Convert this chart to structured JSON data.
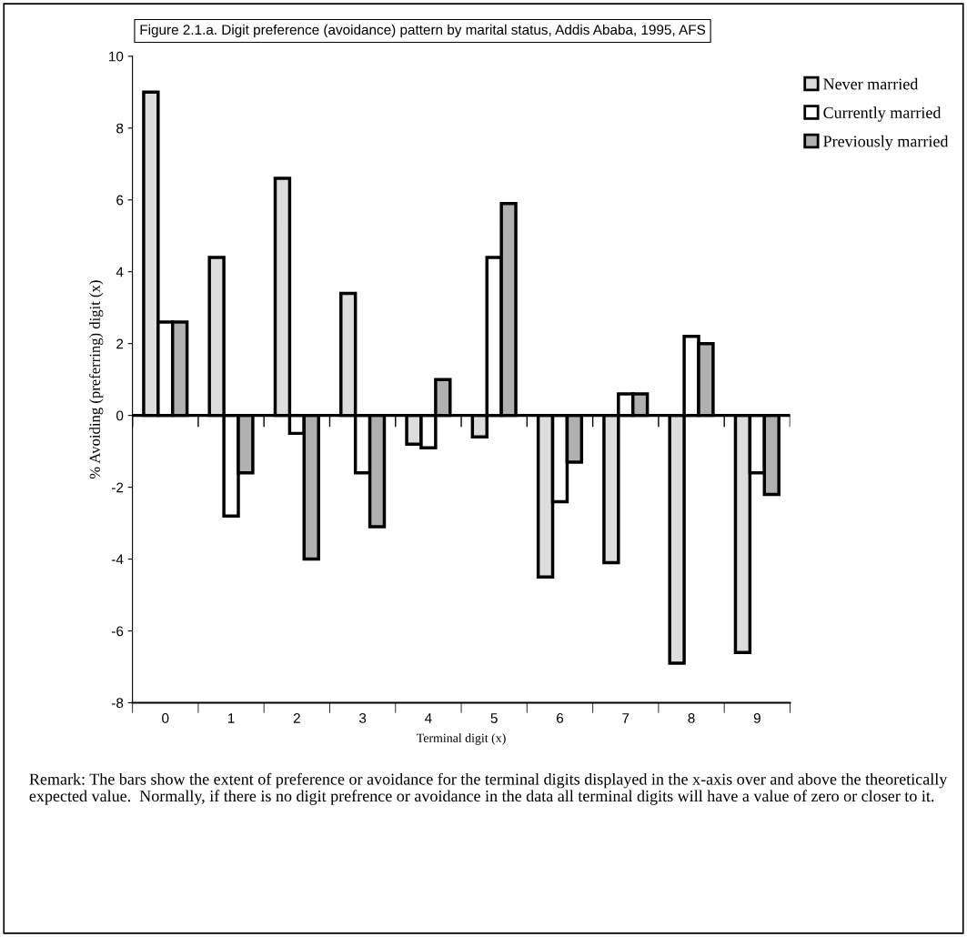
{
  "chart_data": {
    "type": "bar",
    "title": "Figure 2.1.a. Digit preference (avoidance) pattern by marital status, Addis Ababa, 1995, AFS",
    "xlabel": "Terminal digit (x)",
    "ylabel": "% Avoiding (preferring) digit (x)",
    "categories": [
      "0",
      "1",
      "2",
      "3",
      "4",
      "5",
      "6",
      "7",
      "8",
      "9"
    ],
    "series": [
      {
        "name": "Never married",
        "color": "#dddddd",
        "values": [
          9.0,
          4.4,
          6.6,
          3.4,
          -0.8,
          -0.6,
          -4.5,
          -4.1,
          -6.9,
          -6.6
        ]
      },
      {
        "name": "Currently married",
        "color": "#ffffff",
        "values": [
          2.6,
          -2.8,
          -0.5,
          -1.6,
          -0.9,
          4.4,
          -2.4,
          0.6,
          2.2,
          -1.6
        ]
      },
      {
        "name": "Previously married",
        "color": "#b0b0b0",
        "values": [
          2.6,
          -1.6,
          -4.0,
          -3.1,
          1.0,
          5.9,
          -1.3,
          0.6,
          2.0,
          -2.2
        ]
      }
    ],
    "ylim": [
      -8,
      10
    ],
    "yticks": [
      -8,
      -6,
      -4,
      -2,
      0,
      2,
      4,
      6,
      8,
      10
    ],
    "ref_lines": [
      {
        "axis": "y",
        "value": 0,
        "color": "#000000"
      }
    ],
    "grid": false,
    "legend": "top right",
    "annotations": [
      "Remark: The bars show the extent of preference or avoidance for the terminal digits displayed in the x-axis over and above the theoretically expected value.  Normally, if there is no digit prefrence or avoidance in the data all terminal digits will have a value of zero or closer to it."
    ]
  }
}
